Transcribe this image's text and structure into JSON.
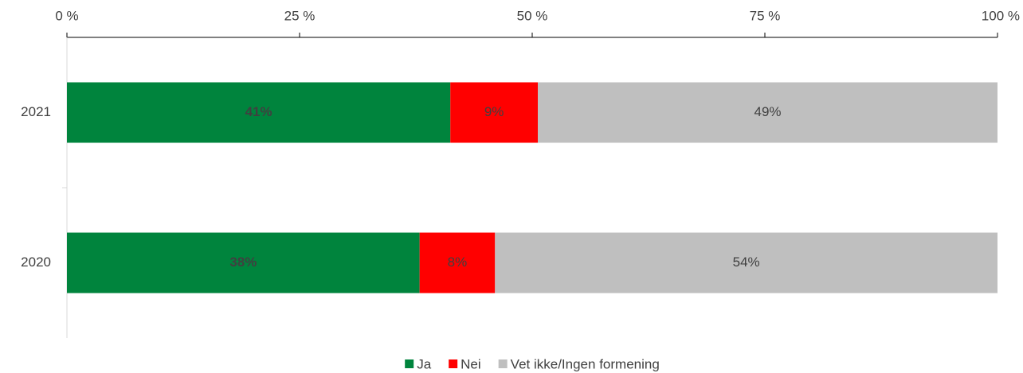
{
  "chart_data": {
    "type": "stacked_barh",
    "categories": [
      "2021",
      "2020"
    ],
    "series": [
      {
        "name": "Ja",
        "color": "#00843d",
        "values": [
          41.2,
          37.9
        ],
        "value_labels": [
          "41%",
          "38%"
        ]
      },
      {
        "name": "Nei",
        "color": "#ff0000",
        "values": [
          9.4,
          8.1
        ],
        "value_labels": [
          "9%",
          "8%"
        ]
      },
      {
        "name": "Vet ikke/Ingen formening",
        "color": "#bfbfbf",
        "values": [
          49.4,
          54.0
        ],
        "value_labels": [
          "49%",
          "54%"
        ]
      }
    ],
    "xlim": [
      0,
      100
    ],
    "xticks": [
      {
        "value": 0,
        "label": "0 %"
      },
      {
        "value": 25,
        "label": "25 %"
      },
      {
        "value": 50,
        "label": "50 %"
      },
      {
        "value": 75,
        "label": "75 %"
      },
      {
        "value": 100,
        "label": "100 %"
      }
    ],
    "legend": "bottom"
  }
}
